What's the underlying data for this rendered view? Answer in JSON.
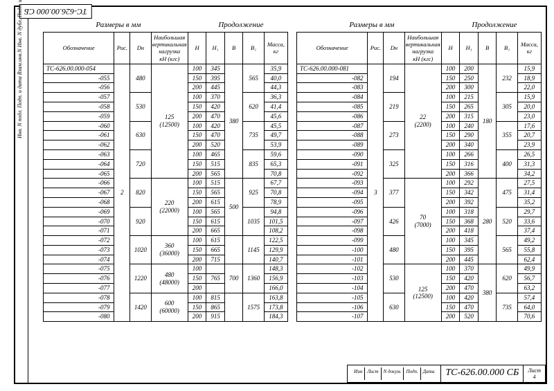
{
  "doc_code": "ТС-626.00.000 СБ",
  "doc_code_top": "ТС-626.00.000 СБ",
  "sheet_label": "Лист",
  "sheet_no": "4",
  "stamp": [
    "Изм",
    "Лист",
    "N докум.",
    "Подп.",
    "Дата"
  ],
  "side_labels": "Инв. N подл.   Подп. и дата   Взам.инв.N   Инв. N дубл.   Подп. и дата",
  "titles": {
    "sizes": "Размеры в мм",
    "cont": "Продолжение"
  },
  "headers": {
    "oboz": "Обозначение",
    "ric": "Рис.",
    "dn": "Dн",
    "load": "Наибольшая\nвертикальная\nнагрузка\nкН (кгс)",
    "h": "H",
    "h1": "H₁",
    "b": "B",
    "b1": "B₁",
    "mass": "Масса,\nкг"
  },
  "left": {
    "first_row_prefix": "ТС-626.00.000-054",
    "ric": "2",
    "groups": [
      {
        "dn": "480",
        "load": "",
        "rows": [
          [
            "ТС-626.00.000-054",
            "100",
            "345",
            "",
            "",
            "35,9"
          ],
          [
            "-055",
            "150",
            "395",
            "",
            "565",
            "40,0"
          ],
          [
            "-056",
            "200",
            "445",
            "",
            "",
            "44,3"
          ]
        ]
      },
      {
        "dn": "530",
        "load": "125\n(12500)",
        "rows": [
          [
            "-057",
            "100",
            "370",
            "",
            "",
            "36,3"
          ],
          [
            "-058",
            "150",
            "420",
            "380",
            "620",
            "41,4"
          ],
          [
            "-059",
            "200",
            "470",
            "",
            "",
            "45,6"
          ]
        ]
      },
      {
        "dn": "630",
        "load": "",
        "rows": [
          [
            "-060",
            "100",
            "420",
            "",
            "",
            "45,5"
          ],
          [
            "-061",
            "150",
            "470",
            "",
            "735",
            "49,7"
          ],
          [
            "-062",
            "200",
            "520",
            "",
            "",
            "53,9"
          ]
        ]
      },
      {
        "dn": "720",
        "load": "",
        "rows": [
          [
            "-063",
            "100",
            "465",
            "",
            "",
            "59,6"
          ],
          [
            "-064",
            "150",
            "515",
            "",
            "835",
            "65,3"
          ],
          [
            "-065",
            "200",
            "565",
            "",
            "",
            "70,8"
          ]
        ]
      },
      {
        "dn": "820",
        "load": "220\n(22000)",
        "rows": [
          [
            "-066",
            "100",
            "515",
            "",
            "",
            "67,7"
          ],
          [
            "-067",
            "150",
            "565",
            "500",
            "925",
            "70,8"
          ],
          [
            "-068",
            "200",
            "615",
            "",
            "",
            "78,9"
          ]
        ]
      },
      {
        "dn": "920",
        "load": "",
        "rows": [
          [
            "-069",
            "100",
            "565",
            "",
            "",
            "94,8"
          ],
          [
            "-070",
            "150",
            "615",
            "",
            "1035",
            "101,5"
          ],
          [
            "-071",
            "200",
            "665",
            "",
            "",
            "108,2"
          ]
        ]
      },
      {
        "dn": "1020",
        "load": "360\n(36000)",
        "rows": [
          [
            "-072",
            "100",
            "615",
            "",
            "",
            "122,5"
          ],
          [
            "-073",
            "150",
            "665",
            "",
            "1145",
            "129,9"
          ],
          [
            "-074",
            "200",
            "715",
            "",
            "",
            "140,7"
          ]
        ]
      },
      {
        "dn": "1220",
        "load": "480\n(48000)",
        "rows": [
          [
            "-075",
            "100",
            "",
            "",
            "",
            "148,3"
          ],
          [
            "-076",
            "150",
            "765",
            "700",
            "1360",
            "156,9"
          ],
          [
            "-077",
            "200",
            "",
            "",
            "",
            "166,0"
          ]
        ]
      },
      {
        "dn": "1420",
        "load": "600\n(60000)",
        "rows": [
          [
            "-078",
            "100",
            "815",
            "",
            "",
            "163,8"
          ],
          [
            "-079",
            "150",
            "865",
            "",
            "1575",
            "173,8"
          ],
          [
            "-080",
            "200",
            "915",
            "",
            "",
            "184,3"
          ]
        ]
      }
    ]
  },
  "right": {
    "first_row_prefix": "ТС-626.00.000-081",
    "ric": "3",
    "groups": [
      {
        "dn": "194",
        "load": "",
        "rows": [
          [
            "ТС-626.00.000-081",
            "100",
            "200",
            "",
            "",
            "15,9"
          ],
          [
            "-082",
            "150",
            "250",
            "",
            "232",
            "18,9"
          ],
          [
            "-083",
            "200",
            "300",
            "",
            "",
            "22,0"
          ]
        ]
      },
      {
        "dn": "219",
        "load": "22\n(2200)",
        "rows": [
          [
            "-084",
            "100",
            "215",
            "",
            "",
            "15,9"
          ],
          [
            "-085",
            "150",
            "265",
            "180",
            "305",
            "20,0"
          ],
          [
            "-086",
            "200",
            "315",
            "",
            "",
            "23,0"
          ]
        ]
      },
      {
        "dn": "273",
        "load": "",
        "rows": [
          [
            "-087",
            "100",
            "240",
            "",
            "",
            "17,6"
          ],
          [
            "-088",
            "150",
            "290",
            "",
            "355",
            "20,7"
          ],
          [
            "-089",
            "200",
            "340",
            "",
            "",
            "23,9"
          ]
        ]
      },
      {
        "dn": "325",
        "load": "",
        "rows": [
          [
            "-090",
            "100",
            "266",
            "",
            "",
            "26,5"
          ],
          [
            "-091",
            "150",
            "316",
            "",
            "400",
            "31,3"
          ],
          [
            "-092",
            "200",
            "366",
            "",
            "",
            "34,2"
          ]
        ]
      },
      {
        "dn": "377",
        "load": "70\n(7000)",
        "rows": [
          [
            "-093",
            "100",
            "292",
            "",
            "",
            "27,5"
          ],
          [
            "-094",
            "150",
            "342",
            "280",
            "475",
            "31,4"
          ],
          [
            "-095",
            "200",
            "392",
            "",
            "",
            "35,2"
          ]
        ]
      },
      {
        "dn": "426",
        "load": "",
        "rows": [
          [
            "-096",
            "100",
            "318",
            "",
            "",
            "29,7"
          ],
          [
            "-097",
            "150",
            "368",
            "",
            "520",
            "33,6"
          ],
          [
            "-098",
            "200",
            "418",
            "",
            "",
            "37,4"
          ]
        ]
      },
      {
        "dn": "480",
        "load": "",
        "rows": [
          [
            "-099",
            "100",
            "345",
            "",
            "",
            "49,2"
          ],
          [
            "-100",
            "150",
            "395",
            "",
            "565",
            "55,8"
          ],
          [
            "-101",
            "200",
            "445",
            "",
            "",
            "62,4"
          ]
        ]
      },
      {
        "dn": "530",
        "load": "125\n(12500)",
        "rows": [
          [
            "-102",
            "100",
            "370",
            "",
            "",
            "49,9"
          ],
          [
            "-103",
            "150",
            "420",
            "380",
            "620",
            "56,7"
          ],
          [
            "-104",
            "200",
            "470",
            "",
            "",
            "63,2"
          ]
        ]
      },
      {
        "dn": "630",
        "load": "",
        "rows": [
          [
            "-105",
            "100",
            "420",
            "",
            "",
            "57,4"
          ],
          [
            "-106",
            "150",
            "470",
            "",
            "735",
            "64,0"
          ],
          [
            "-107",
            "200",
            "520",
            "",
            "",
            "70,6"
          ]
        ]
      }
    ]
  }
}
